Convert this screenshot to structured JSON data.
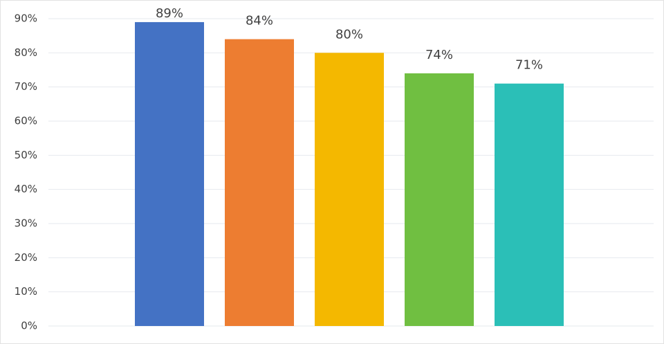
{
  "chart_data": {
    "type": "bar",
    "categories": [
      null,
      null,
      null,
      null,
      null
    ],
    "values": [
      89,
      84,
      80,
      74,
      71
    ],
    "value_labels": [
      "89%",
      "84%",
      "80%",
      "74%",
      "71%"
    ],
    "colors": [
      "#4472c4",
      "#ed7d31",
      "#f4b800",
      "#70bf41",
      "#2bbfb7"
    ],
    "ylim": [
      0,
      90
    ],
    "yticks": [
      {
        "value": 0,
        "label": "0%"
      },
      {
        "value": 10,
        "label": "10%"
      },
      {
        "value": 20,
        "label": "20%"
      },
      {
        "value": 30,
        "label": "30%"
      },
      {
        "value": 40,
        "label": "40%"
      },
      {
        "value": 50,
        "label": "50%"
      },
      {
        "value": 60,
        "label": "60%"
      },
      {
        "value": 70,
        "label": "70%"
      },
      {
        "value": 80,
        "label": "80%"
      },
      {
        "value": 90,
        "label": "90%"
      }
    ],
    "grid": true
  }
}
